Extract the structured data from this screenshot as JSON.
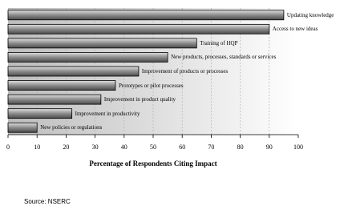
{
  "chart_data": {
    "type": "hbar",
    "categories": [
      "Updating knowledge",
      "Access to new ideas",
      "Training of HQP",
      "New products, processes, standards or services",
      "Improvement of products or processes",
      "Prototypes or pilot processes",
      "Improvement in product quality",
      "Improvement in productivity",
      "New policies or regulations"
    ],
    "values": [
      95,
      90,
      65,
      55,
      45,
      37,
      32,
      22,
      10
    ],
    "color": "#8c8c8c",
    "xlim": [
      0,
      100
    ],
    "xticks": [
      0,
      10,
      20,
      30,
      40,
      50,
      60,
      70,
      80,
      90,
      100
    ],
    "grid": true,
    "x_label": "Percentage of Respondents Citing Impact",
    "source": "Source: NSERC"
  }
}
